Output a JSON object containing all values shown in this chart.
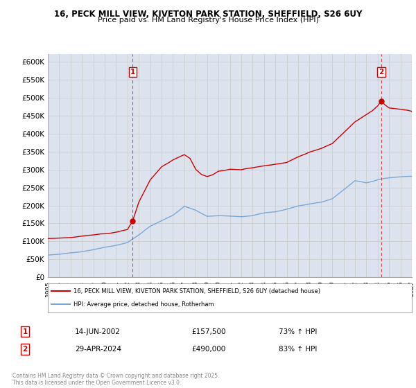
{
  "title_line1": "16, PECK MILL VIEW, KIVETON PARK STATION, SHEFFIELD, S26 6UY",
  "title_line2": "Price paid vs. HM Land Registry's House Price Index (HPI)",
  "background_color": "#ffffff",
  "grid_color": "#cccccc",
  "plot_bg_color": "#dde3ee",
  "red_color": "#cc0000",
  "blue_color": "#7ba7d4",
  "marker1_year": 2002.45,
  "marker2_year": 2024.33,
  "sale1_date": "14-JUN-2002",
  "sale1_price": "£157,500",
  "sale1_hpi": "73% ↑ HPI",
  "sale2_date": "29-APR-2024",
  "sale2_price": "£490,000",
  "sale2_hpi": "83% ↑ HPI",
  "legend_line1": "16, PECK MILL VIEW, KIVETON PARK STATION, SHEFFIELD, S26 6UY (detached house)",
  "legend_line2": "HPI: Average price, detached house, Rotherham",
  "footer": "Contains HM Land Registry data © Crown copyright and database right 2025.\nThis data is licensed under the Open Government Licence v3.0.",
  "xmin": 1995,
  "xmax": 2027,
  "ymin": 0,
  "ymax": 620000,
  "hpi_x": [
    1995,
    1996,
    1997,
    1998,
    1999,
    2000,
    2001,
    2002,
    2003,
    2004,
    2005,
    2006,
    2007,
    2008,
    2009,
    2010,
    2011,
    2012,
    2013,
    2014,
    2015,
    2016,
    2017,
    2018,
    2019,
    2020,
    2021,
    2022,
    2023,
    2024,
    2025,
    2026,
    2027
  ],
  "hpi_y": [
    62000,
    64000,
    67000,
    70000,
    75000,
    82000,
    88000,
    95000,
    115000,
    140000,
    155000,
    170000,
    195000,
    185000,
    168000,
    170000,
    168000,
    165000,
    168000,
    175000,
    178000,
    185000,
    195000,
    200000,
    205000,
    215000,
    240000,
    265000,
    260000,
    270000,
    275000,
    278000,
    280000
  ],
  "red_x": [
    1995,
    1996,
    1997,
    1998,
    1999,
    2000,
    2001,
    2002.0,
    2002.45,
    2003,
    2004,
    2005,
    2006,
    2007,
    2007.5,
    2008,
    2008.5,
    2009,
    2009.5,
    2010,
    2011,
    2012,
    2013,
    2014,
    2015,
    2016,
    2017,
    2018,
    2019,
    2020,
    2021,
    2022,
    2023,
    2023.5,
    2024.0,
    2024.33,
    2024.6,
    2025,
    2026,
    2027
  ],
  "red_y": [
    108000,
    110000,
    112000,
    115000,
    118000,
    122000,
    128000,
    135000,
    157500,
    210000,
    270000,
    305000,
    325000,
    340000,
    330000,
    300000,
    285000,
    280000,
    285000,
    295000,
    300000,
    295000,
    300000,
    305000,
    310000,
    315000,
    330000,
    345000,
    355000,
    370000,
    400000,
    430000,
    450000,
    460000,
    475000,
    490000,
    480000,
    470000,
    465000,
    460000
  ]
}
